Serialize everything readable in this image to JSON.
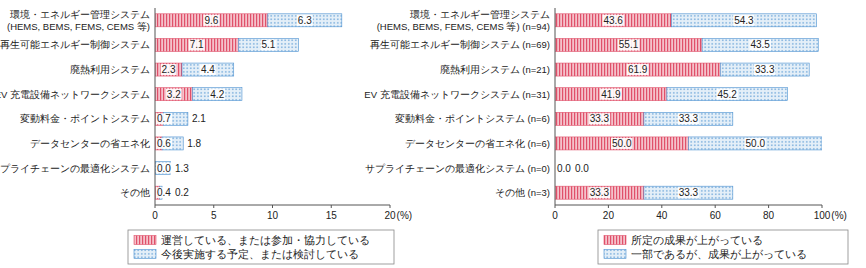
{
  "chart_data": [
    {
      "type": "bar",
      "orientation": "horizontal",
      "stacked": true,
      "data_labels": true,
      "grid": false,
      "legend": "bottom",
      "xlabel": "(%)",
      "categories": [
        "環境・エネルギー管理システム\n(HEMS, BEMS, FEMS, CEMS 等)",
        "再生可能エネルギー制御システム",
        "廃熱利用システム",
        "EV 充電設備ネットワークシステム",
        "変動料金・ポイントシステム",
        "データセンターの省エネ化",
        "サプライチェーンの最適化システム",
        "その他"
      ],
      "series": [
        {
          "name": "運営している、または参加・協力している",
          "color": "#e0506a",
          "values": [
            9.6,
            7.1,
            2.3,
            3.2,
            0.7,
            0.6,
            0.0,
            0.4
          ],
          "value_labels": [
            "9.6",
            "7.1",
            "2.3",
            "3.2",
            "0.7",
            "0.6",
            "0.0",
            "0.4"
          ]
        },
        {
          "name": "今後実施する予定、または検討している",
          "color": "#4a90d0",
          "values": [
            6.3,
            5.1,
            4.4,
            4.2,
            2.1,
            1.8,
            1.3,
            0.2
          ],
          "value_labels": [
            "6.3",
            "5.1",
            "4.4",
            "4.2",
            "2.1",
            "1.8",
            "1.3",
            "0.2"
          ]
        }
      ],
      "xlim": [
        0,
        20
      ],
      "xticks": [
        0,
        5,
        10,
        15,
        20
      ]
    },
    {
      "type": "bar",
      "orientation": "horizontal",
      "stacked": true,
      "data_labels": true,
      "grid": false,
      "legend": "bottom",
      "xlabel": "(%)",
      "categories": [
        "環境・エネルギー管理システム\n(HEMS, BEMS, FEMS, CEMS 等) (n=94)",
        "再生可能エネルギー制御システム (n=69)",
        "廃熱利用システム (n=21)",
        "EV 充電設備ネットワークシステム (n=31)",
        "変動料金・ポイントシステム (n=6)",
        "データセンターの省エネ化 (n=6)",
        "サプライチェーンの最適化システム (n=0)",
        "その他 (n=3)"
      ],
      "series": [
        {
          "name": "所定の成果が上がっている",
          "color": "#e0506a",
          "values": [
            43.6,
            55.1,
            61.9,
            41.9,
            33.3,
            50.0,
            0.0,
            33.3
          ],
          "value_labels": [
            "43.6",
            "55.1",
            "61.9",
            "41.9",
            "33.3",
            "50.0",
            "0.0",
            "33.3"
          ]
        },
        {
          "name": "一部であるが、成果が上がっている",
          "color": "#4a90d0",
          "values": [
            54.3,
            43.5,
            33.3,
            45.2,
            33.3,
            50.0,
            0.0,
            33.3
          ],
          "value_labels": [
            "54.3",
            "43.5",
            "33.3",
            "45.2",
            "33.3",
            "50.0",
            "0.0",
            "33.3"
          ]
        }
      ],
      "xlim": [
        0,
        100
      ],
      "xticks": [
        0,
        20,
        40,
        60,
        80,
        100
      ]
    }
  ]
}
